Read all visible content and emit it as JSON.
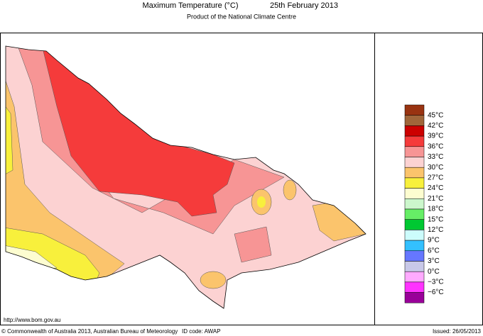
{
  "header": {
    "title": "Maximum Temperature (°C)",
    "date": "25th February 2013",
    "subtitle": "Product of the National Climate Centre"
  },
  "map": {
    "url": "http://www.bom.gov.au"
  },
  "legend": {
    "labels": [
      "45°C",
      "42°C",
      "39°C",
      "36°C",
      "33°C",
      "30°C",
      "27°C",
      "24°C",
      "21°C",
      "18°C",
      "15°C",
      "12°C",
      "9°C",
      "6°C",
      "3°C",
      "0°C",
      "−3°C",
      "−6°C"
    ],
    "colors": [
      "#993311",
      "#a0663a",
      "#cc0000",
      "#f53b3b",
      "#f79595",
      "#fcd2d2",
      "#fbc46c",
      "#f8f03c",
      "#fdfdd0",
      "#ccf7cc",
      "#66ee66",
      "#00c832",
      "#ccfcfc",
      "#33c0ff",
      "#6677ff",
      "#c8c8e8",
      "#ffaaff",
      "#ff33ff",
      "#990099"
    ]
  },
  "footer": {
    "copyright": "© Commonwealth of Australia 2013, Australian Bureau of Meteorology",
    "id_code": "ID code: AWAP",
    "issued": "Issued: 26/05/2013"
  }
}
